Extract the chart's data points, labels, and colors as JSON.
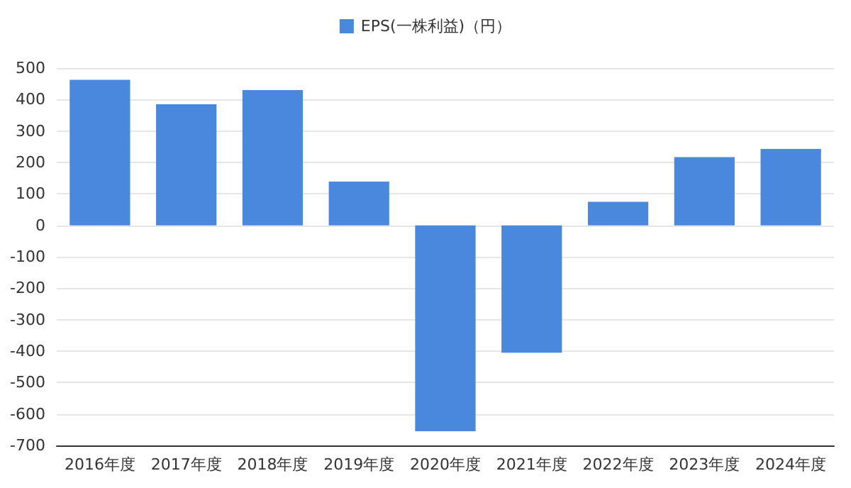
{
  "chart_data": {
    "type": "bar",
    "categories": [
      "2016年度",
      "2017年度",
      "2018年度",
      "2019年度",
      "2020年度",
      "2021年度",
      "2022年度",
      "2023年度",
      "2024年度"
    ],
    "series": [
      {
        "name": "EPS(一株利益)（円）",
        "color": "#4a88dd",
        "values": [
          463,
          385,
          430,
          139,
          -655,
          -405,
          75,
          217,
          243
        ]
      }
    ],
    "ylim": [
      -700,
      500
    ],
    "yticks": [
      -700,
      -600,
      -500,
      -400,
      -300,
      -200,
      -100,
      0,
      100,
      200,
      300,
      400,
      500
    ],
    "grid": "y",
    "legend": "top"
  }
}
